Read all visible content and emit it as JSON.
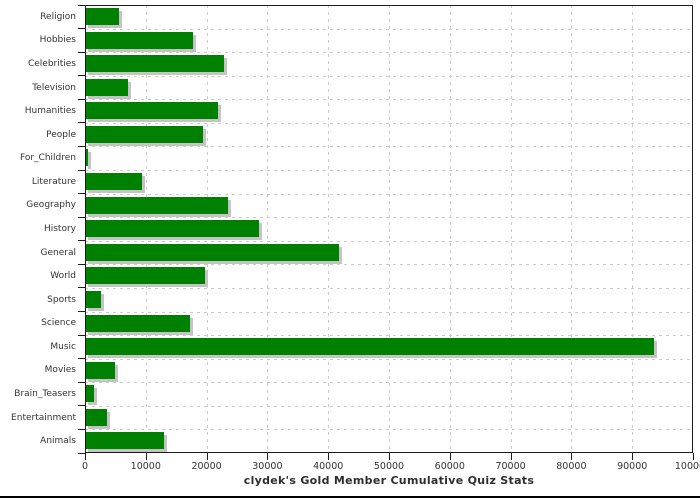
{
  "page": {
    "bottom_rule_color": "#000000",
    "background_color": "#ffffff"
  },
  "chart_data": {
    "type": "bar",
    "orientation": "horizontal",
    "title": "clydek's Gold Member Cumulative Quiz Stats",
    "categories": [
      "Religion",
      "Hobbies",
      "Celebrities",
      "Television",
      "Humanities",
      "People",
      "For_Children",
      "Literature",
      "Geography",
      "History",
      "General",
      "World",
      "Sports",
      "Science",
      "Music",
      "Movies",
      "Brain_Teasers",
      "Entertainment",
      "Animals"
    ],
    "values": [
      5600,
      17700,
      22800,
      7100,
      21900,
      19400,
      550,
      9300,
      23500,
      28600,
      41800,
      19800,
      2600,
      17300,
      93600,
      5000,
      1400,
      3700,
      13000
    ],
    "xlabel": "",
    "ylabel": "",
    "xlim": [
      0,
      100000
    ],
    "x_ticks": [
      0,
      10000,
      20000,
      30000,
      40000,
      50000,
      60000,
      70000,
      80000,
      90000,
      100000
    ],
    "x_tick_labels": [
      "0",
      "10000",
      "20000",
      "30000",
      "40000",
      "50000",
      "60000",
      "70000",
      "80000",
      "90000",
      "100000"
    ],
    "grid": "dashed",
    "legend": "none",
    "bar_color": "#008000",
    "bar_shadow_color": "#c4c4c4",
    "grid_color": "#cccccc",
    "axis_color": "#1b1b1b",
    "label_color": "#333333"
  }
}
